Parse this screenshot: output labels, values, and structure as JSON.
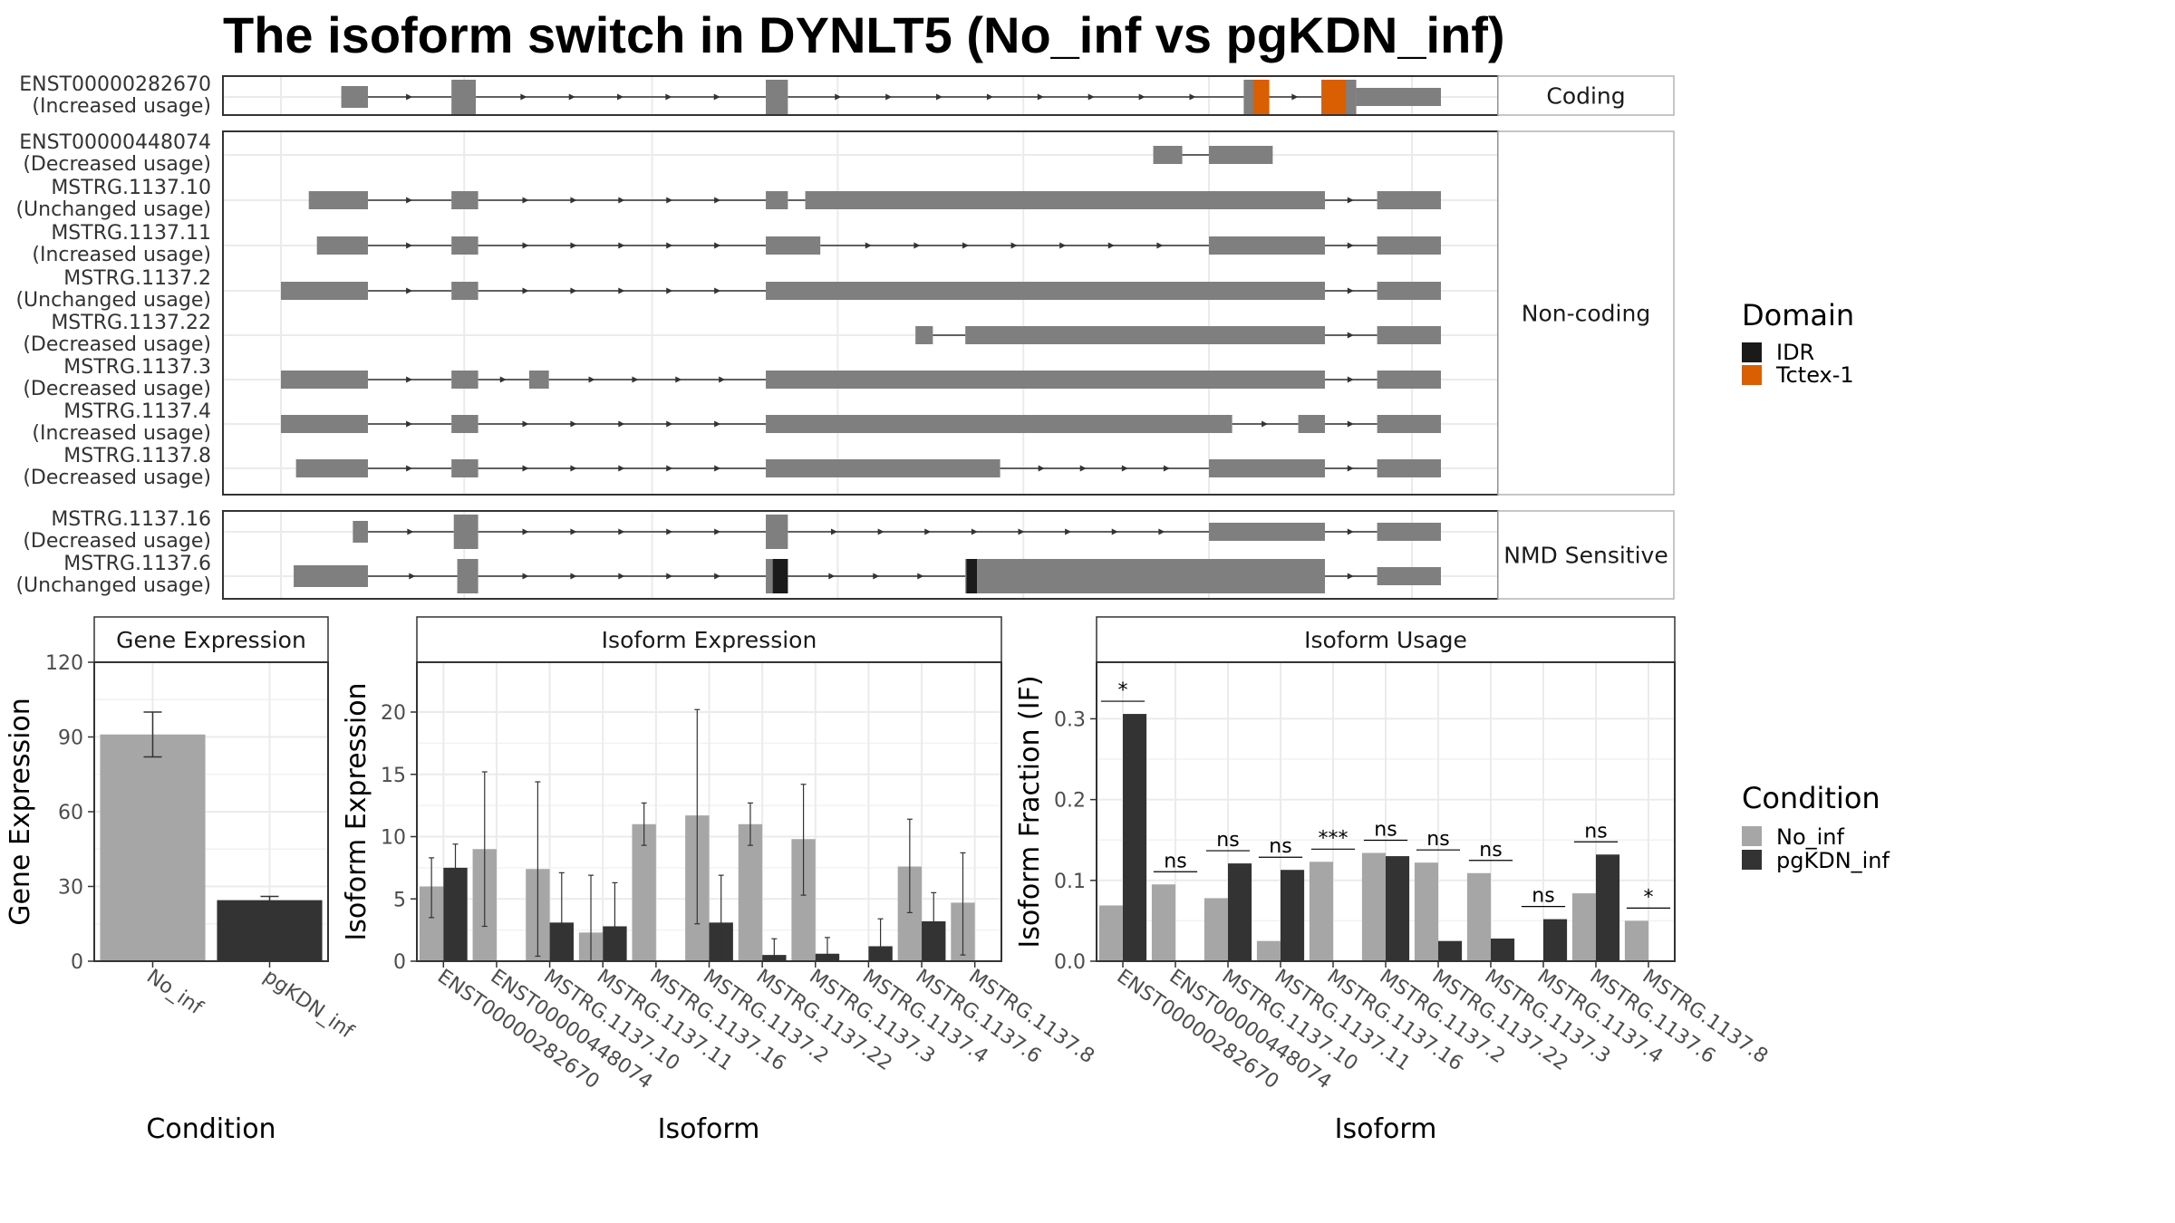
{
  "title": "The isoform switch in DYNLT5 (No_inf vs pgKDN_inf)",
  "colors": {
    "exon": "#7f7f7f",
    "idr": "#1a1a1a",
    "tctex": "#d95f02",
    "no_inf": "#a6a6a6",
    "pgkdn_inf": "#333333",
    "grid": "#ebebeb",
    "panel_border": "#333333",
    "strip_bg": "#ffffff"
  },
  "transcript_panel": {
    "groups": [
      {
        "label": "Coding",
        "transcripts": [
          {
            "id": "ENST00000282670",
            "usage": "(Increased usage)",
            "coding": true,
            "exons": [
              [
                0.052,
                0.075
              ],
              [
                0.147,
                0.168
              ],
              [
                0.418,
                0.437
              ],
              [
                0.83,
                0.852
              ],
              [
                0.897,
                0.927
              ],
              [
                0.927,
                1.0
              ]
            ],
            "domains": [
              {
                "name": "Tctex-1",
                "range": [
                  0.838,
                  0.852
                ]
              },
              {
                "name": "Tctex-1",
                "range": [
                  0.897,
                  0.918
                ]
              }
            ]
          }
        ]
      },
      {
        "label": "Non-coding",
        "transcripts": [
          {
            "id": "ENST00000448074",
            "usage": "(Decreased usage)",
            "exons": [
              [
                0.752,
                0.777
              ],
              [
                0.8,
                0.855
              ]
            ]
          },
          {
            "id": "MSTRG.1137.10",
            "usage": "(Unchanged usage)",
            "exons": [
              [
                0.024,
                0.075
              ],
              [
                0.147,
                0.17
              ],
              [
                0.418,
                0.437
              ],
              [
                0.452,
                0.9
              ],
              [
                0.945,
                1.0
              ]
            ]
          },
          {
            "id": "MSTRG.1137.11",
            "usage": "(Increased usage)",
            "exons": [
              [
                0.031,
                0.075
              ],
              [
                0.147,
                0.17
              ],
              [
                0.418,
                0.465
              ],
              [
                0.8,
                0.9
              ],
              [
                0.945,
                1.0
              ]
            ]
          },
          {
            "id": "MSTRG.1137.2",
            "usage": "(Unchanged usage)",
            "exons": [
              [
                0.0,
                0.075
              ],
              [
                0.147,
                0.17
              ],
              [
                0.418,
                0.9
              ],
              [
                0.945,
                1.0
              ]
            ]
          },
          {
            "id": "MSTRG.1137.22",
            "usage": "(Decreased usage)",
            "exons": [
              [
                0.547,
                0.562
              ],
              [
                0.59,
                0.9
              ],
              [
                0.945,
                1.0
              ]
            ]
          },
          {
            "id": "MSTRG.1137.3",
            "usage": "(Decreased usage)",
            "exons": [
              [
                0.0,
                0.075
              ],
              [
                0.147,
                0.17
              ],
              [
                0.214,
                0.231
              ],
              [
                0.418,
                0.9
              ],
              [
                0.945,
                1.0
              ]
            ]
          },
          {
            "id": "MSTRG.1137.4",
            "usage": "(Increased usage)",
            "exons": [
              [
                0.0,
                0.075
              ],
              [
                0.147,
                0.17
              ],
              [
                0.418,
                0.82
              ],
              [
                0.877,
                0.9
              ],
              [
                0.945,
                1.0
              ]
            ]
          },
          {
            "id": "MSTRG.1137.8",
            "usage": "(Decreased usage)",
            "exons": [
              [
                0.013,
                0.075
              ],
              [
                0.147,
                0.17
              ],
              [
                0.418,
                0.62
              ],
              [
                0.8,
                0.9
              ],
              [
                0.945,
                1.0
              ]
            ]
          }
        ]
      },
      {
        "label": "NMD Sensitive",
        "transcripts": [
          {
            "id": "MSTRG.1137.16",
            "usage": "(Decreased usage)",
            "coding": true,
            "exons": [
              [
                0.062,
                0.075
              ],
              [
                0.149,
                0.17
              ],
              [
                0.418,
                0.437
              ],
              [
                0.8,
                0.9
              ],
              [
                0.945,
                1.0
              ]
            ],
            "domains": []
          },
          {
            "id": "MSTRG.1137.6",
            "usage": "(Unchanged usage)",
            "coding": true,
            "exons": [
              [
                0.011,
                0.075
              ],
              [
                0.152,
                0.17
              ],
              [
                0.418,
                0.437
              ],
              [
                0.59,
                0.9
              ],
              [
                0.945,
                1.0
              ]
            ],
            "domains": [
              {
                "name": "IDR",
                "range": [
                  0.424,
                  0.437
                ]
              },
              {
                "name": "IDR",
                "range": [
                  0.591,
                  0.6
                ]
              }
            ]
          }
        ]
      }
    ]
  },
  "legend_domain": {
    "title": "Domain",
    "items": [
      "IDR",
      "Tctex-1"
    ]
  },
  "legend_condition": {
    "title": "Condition",
    "items": [
      "No_inf",
      "pgKDN_inf"
    ]
  },
  "chart_data": [
    {
      "type": "bar",
      "strip": "Gene Expression",
      "xlabel": "Condition",
      "ylabel": "Gene Expression",
      "categories": [
        "No_inf",
        "pgKDN_inf"
      ],
      "values": [
        91,
        24.5
      ],
      "error": [
        [
          82,
          100
        ],
        [
          23,
          26
        ]
      ],
      "ylim": [
        0,
        120
      ],
      "yticks": [
        0,
        30,
        60,
        90,
        120
      ]
    },
    {
      "type": "bar",
      "strip": "Isoform Expression",
      "xlabel": "Isoform",
      "ylabel": "Isoform Expression",
      "categories": [
        "ENST00000282670",
        "ENST00000448074",
        "MSTRG.1137.10",
        "MSTRG.1137.11",
        "MSTRG.1137.16",
        "MSTRG.1137.2",
        "MSTRG.1137.22",
        "MSTRG.1137.3",
        "MSTRG.1137.4",
        "MSTRG.1137.6",
        "MSTRG.1137.8"
      ],
      "series": [
        {
          "name": "No_inf",
          "values": [
            6,
            9,
            7.4,
            2.3,
            11,
            11.7,
            11,
            9.8,
            0,
            7.6,
            4.7
          ],
          "error": [
            [
              3.5,
              8.3
            ],
            [
              2.8,
              15.2
            ],
            [
              0.4,
              14.4
            ],
            [
              0,
              6.9
            ],
            [
              9.3,
              12.7
            ],
            [
              3,
              20.2
            ],
            [
              9.3,
              12.7
            ],
            [
              5.3,
              14.2
            ],
            [
              0,
              0
            ],
            [
              3.9,
              11.4
            ],
            [
              0.5,
              8.7
            ]
          ]
        },
        {
          "name": "pgKDN_inf",
          "values": [
            7.5,
            0,
            3.1,
            2.8,
            0,
            3.1,
            0.5,
            0.6,
            1.2,
            3.2,
            0
          ],
          "error": [
            [
              5.6,
              9.4
            ],
            [
              0,
              0
            ],
            [
              0,
              7.1
            ],
            [
              0,
              6.3
            ],
            [
              0,
              0
            ],
            [
              0,
              6.9
            ],
            [
              0,
              1.8
            ],
            [
              0,
              1.9
            ],
            [
              0,
              3.4
            ],
            [
              0.8,
              5.5
            ],
            [
              0,
              0
            ]
          ]
        }
      ],
      "ylim": [
        0,
        24
      ],
      "yticks": [
        0,
        5,
        10,
        15,
        20
      ]
    },
    {
      "type": "bar",
      "strip": "Isoform Usage",
      "xlabel": "Isoform",
      "ylabel": "Isoform Fraction (IF)",
      "categories": [
        "ENST00000282670",
        "ENST00000448074",
        "MSTRG.1137.10",
        "MSTRG.1137.11",
        "MSTRG.1137.16",
        "MSTRG.1137.2",
        "MSTRG.1137.22",
        "MSTRG.1137.3",
        "MSTRG.1137.4",
        "MSTRG.1137.6",
        "MSTRG.1137.8"
      ],
      "series": [
        {
          "name": "No_inf",
          "values": [
            0.069,
            0.095,
            0.078,
            0.025,
            0.123,
            0.134,
            0.122,
            0.109,
            0,
            0.084,
            0.05
          ]
        },
        {
          "name": "pgKDN_inf",
          "values": [
            0.306,
            0,
            0.121,
            0.113,
            0,
            0.13,
            0.025,
            0.028,
            0.052,
            0.132,
            0
          ]
        }
      ],
      "significance": [
        "*",
        "ns",
        "ns",
        "ns",
        "***",
        "ns",
        "ns",
        "ns",
        "ns",
        "ns",
        "*"
      ],
      "ylim": [
        0,
        0.37
      ],
      "yticks": [
        0.0,
        0.1,
        0.2,
        0.3
      ],
      "ytick_labels": [
        "0.0",
        "0.1",
        "0.2",
        "0.3"
      ]
    }
  ]
}
